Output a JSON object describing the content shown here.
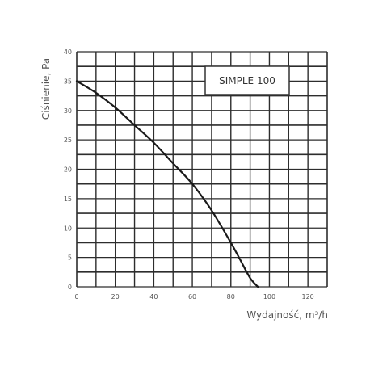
{
  "chart_data": {
    "type": "line",
    "xlabel": "Wydajność, m³/h",
    "ylabel": "Ciśnienie, Pa",
    "xlim": [
      0,
      130
    ],
    "ylim": [
      0,
      40
    ],
    "x_ticks": [
      0,
      20,
      40,
      60,
      80,
      100,
      120
    ],
    "y_ticks": [
      0,
      5,
      10,
      15,
      20,
      25,
      30,
      35,
      40
    ],
    "x_grid_step": 10,
    "y_grid_step": 2.5,
    "grid": true,
    "series": [
      {
        "name": "SIMPLE 100",
        "x": [
          0,
          10,
          20,
          30,
          40,
          50,
          60,
          70,
          80,
          85,
          90,
          94
        ],
        "y": [
          35,
          33,
          30.5,
          27.5,
          24.5,
          21,
          17.5,
          13,
          7.5,
          4.5,
          1.5,
          0
        ]
      }
    ],
    "legend": "top-right"
  }
}
